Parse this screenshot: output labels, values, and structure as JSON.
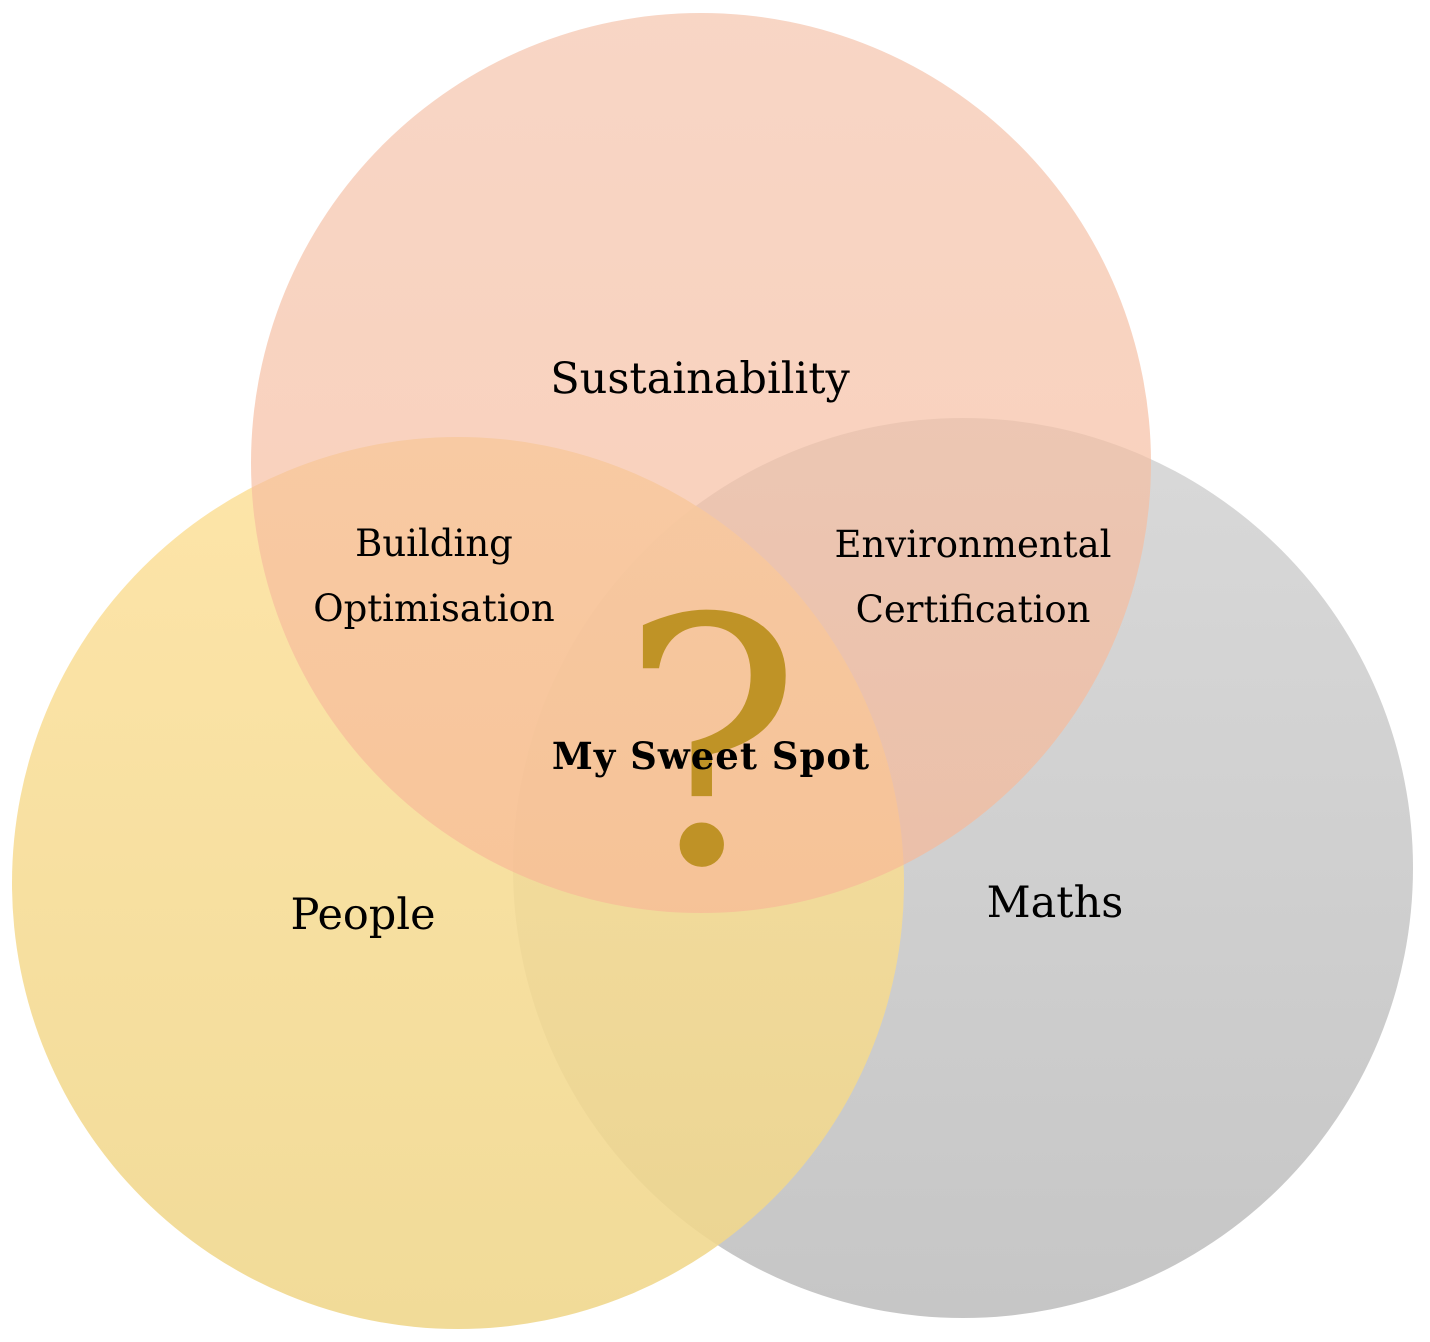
{
  "colors": {
    "people": "#fbd889",
    "maths": "#c8c8c8",
    "sustainability": "#f5a985",
    "question_mark": "#b58a12"
  },
  "sets": {
    "sustainability": "Sustainability",
    "people": "People",
    "maths": "Maths"
  },
  "intersections": {
    "sustainability_people": {
      "line1": "Building",
      "line2": "Optimisation"
    },
    "sustainability_maths": {
      "line1": "Environmental",
      "line2": "Certification"
    },
    "all": "My Sweet Spot"
  },
  "center_symbol": "?"
}
